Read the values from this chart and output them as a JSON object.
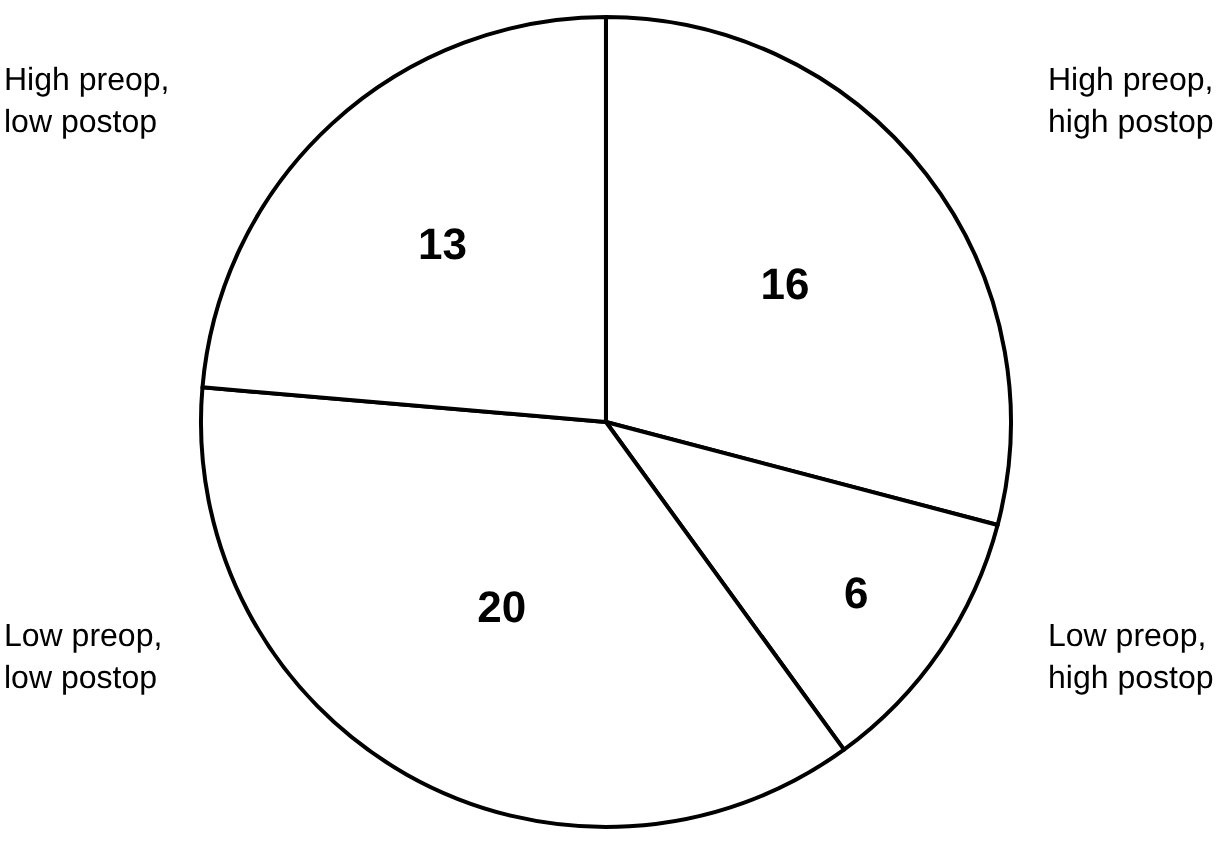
{
  "chart_data": {
    "type": "pie",
    "categories": [
      "High preop, high postop",
      "Low preop, high postop",
      "Low preop, low postop",
      "High preop, low postop"
    ],
    "values": [
      16,
      6,
      20,
      13
    ],
    "colors": [
      "#ffffff",
      "#ffffff",
      "#ffffff",
      "#ffffff"
    ],
    "data_labels": true,
    "legend": false
  }
}
